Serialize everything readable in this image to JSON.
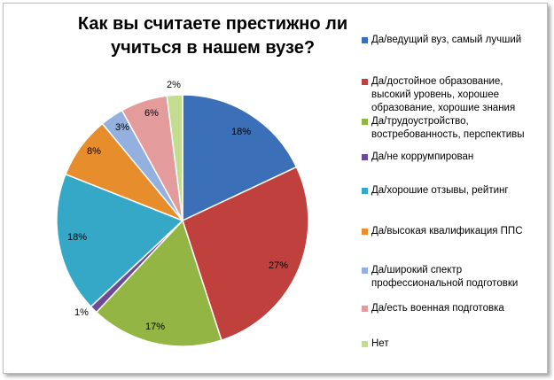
{
  "chart_data": {
    "type": "pie",
    "title": "Как вы считаете престижно ли учиться в нашем  вузе?",
    "slices": [
      {
        "label": "Да/ведущий вуз, самый лучший",
        "value": 18,
        "data_label": "18%",
        "color": "#3b6fb8"
      },
      {
        "label": "Да/достойное образование, высокий уровень, хорошее образование, хорошие знания",
        "value": 27,
        "data_label": "27%",
        "color": "#c0403d"
      },
      {
        "label": "Да/трудоустройство, востребованность, перспективы",
        "value": 17,
        "data_label": "17%",
        "color": "#93b543"
      },
      {
        "label": "Да/не коррумпирован",
        "value": 1,
        "data_label": "1%",
        "color": "#6c4a96"
      },
      {
        "label": "Да/хорошие отзывы, рейтинг",
        "value": 18,
        "data_label": "18%",
        "color": "#34a8c6"
      },
      {
        "label": "Да/высокая квалификация ППС",
        "value": 8,
        "data_label": "8%",
        "color": "#e88d2c"
      },
      {
        "label": "Да/широкий спектр профессиональной подготовки",
        "value": 3,
        "data_label": "3%",
        "color": "#93b0de"
      },
      {
        "label": "Да/есть военная подготовка",
        "value": 6,
        "data_label": "6%",
        "color": "#e39c9b"
      },
      {
        "label": "Нет",
        "value": 2,
        "data_label": "2%",
        "color": "#c4dc8f"
      }
    ],
    "legend_position": "right"
  }
}
